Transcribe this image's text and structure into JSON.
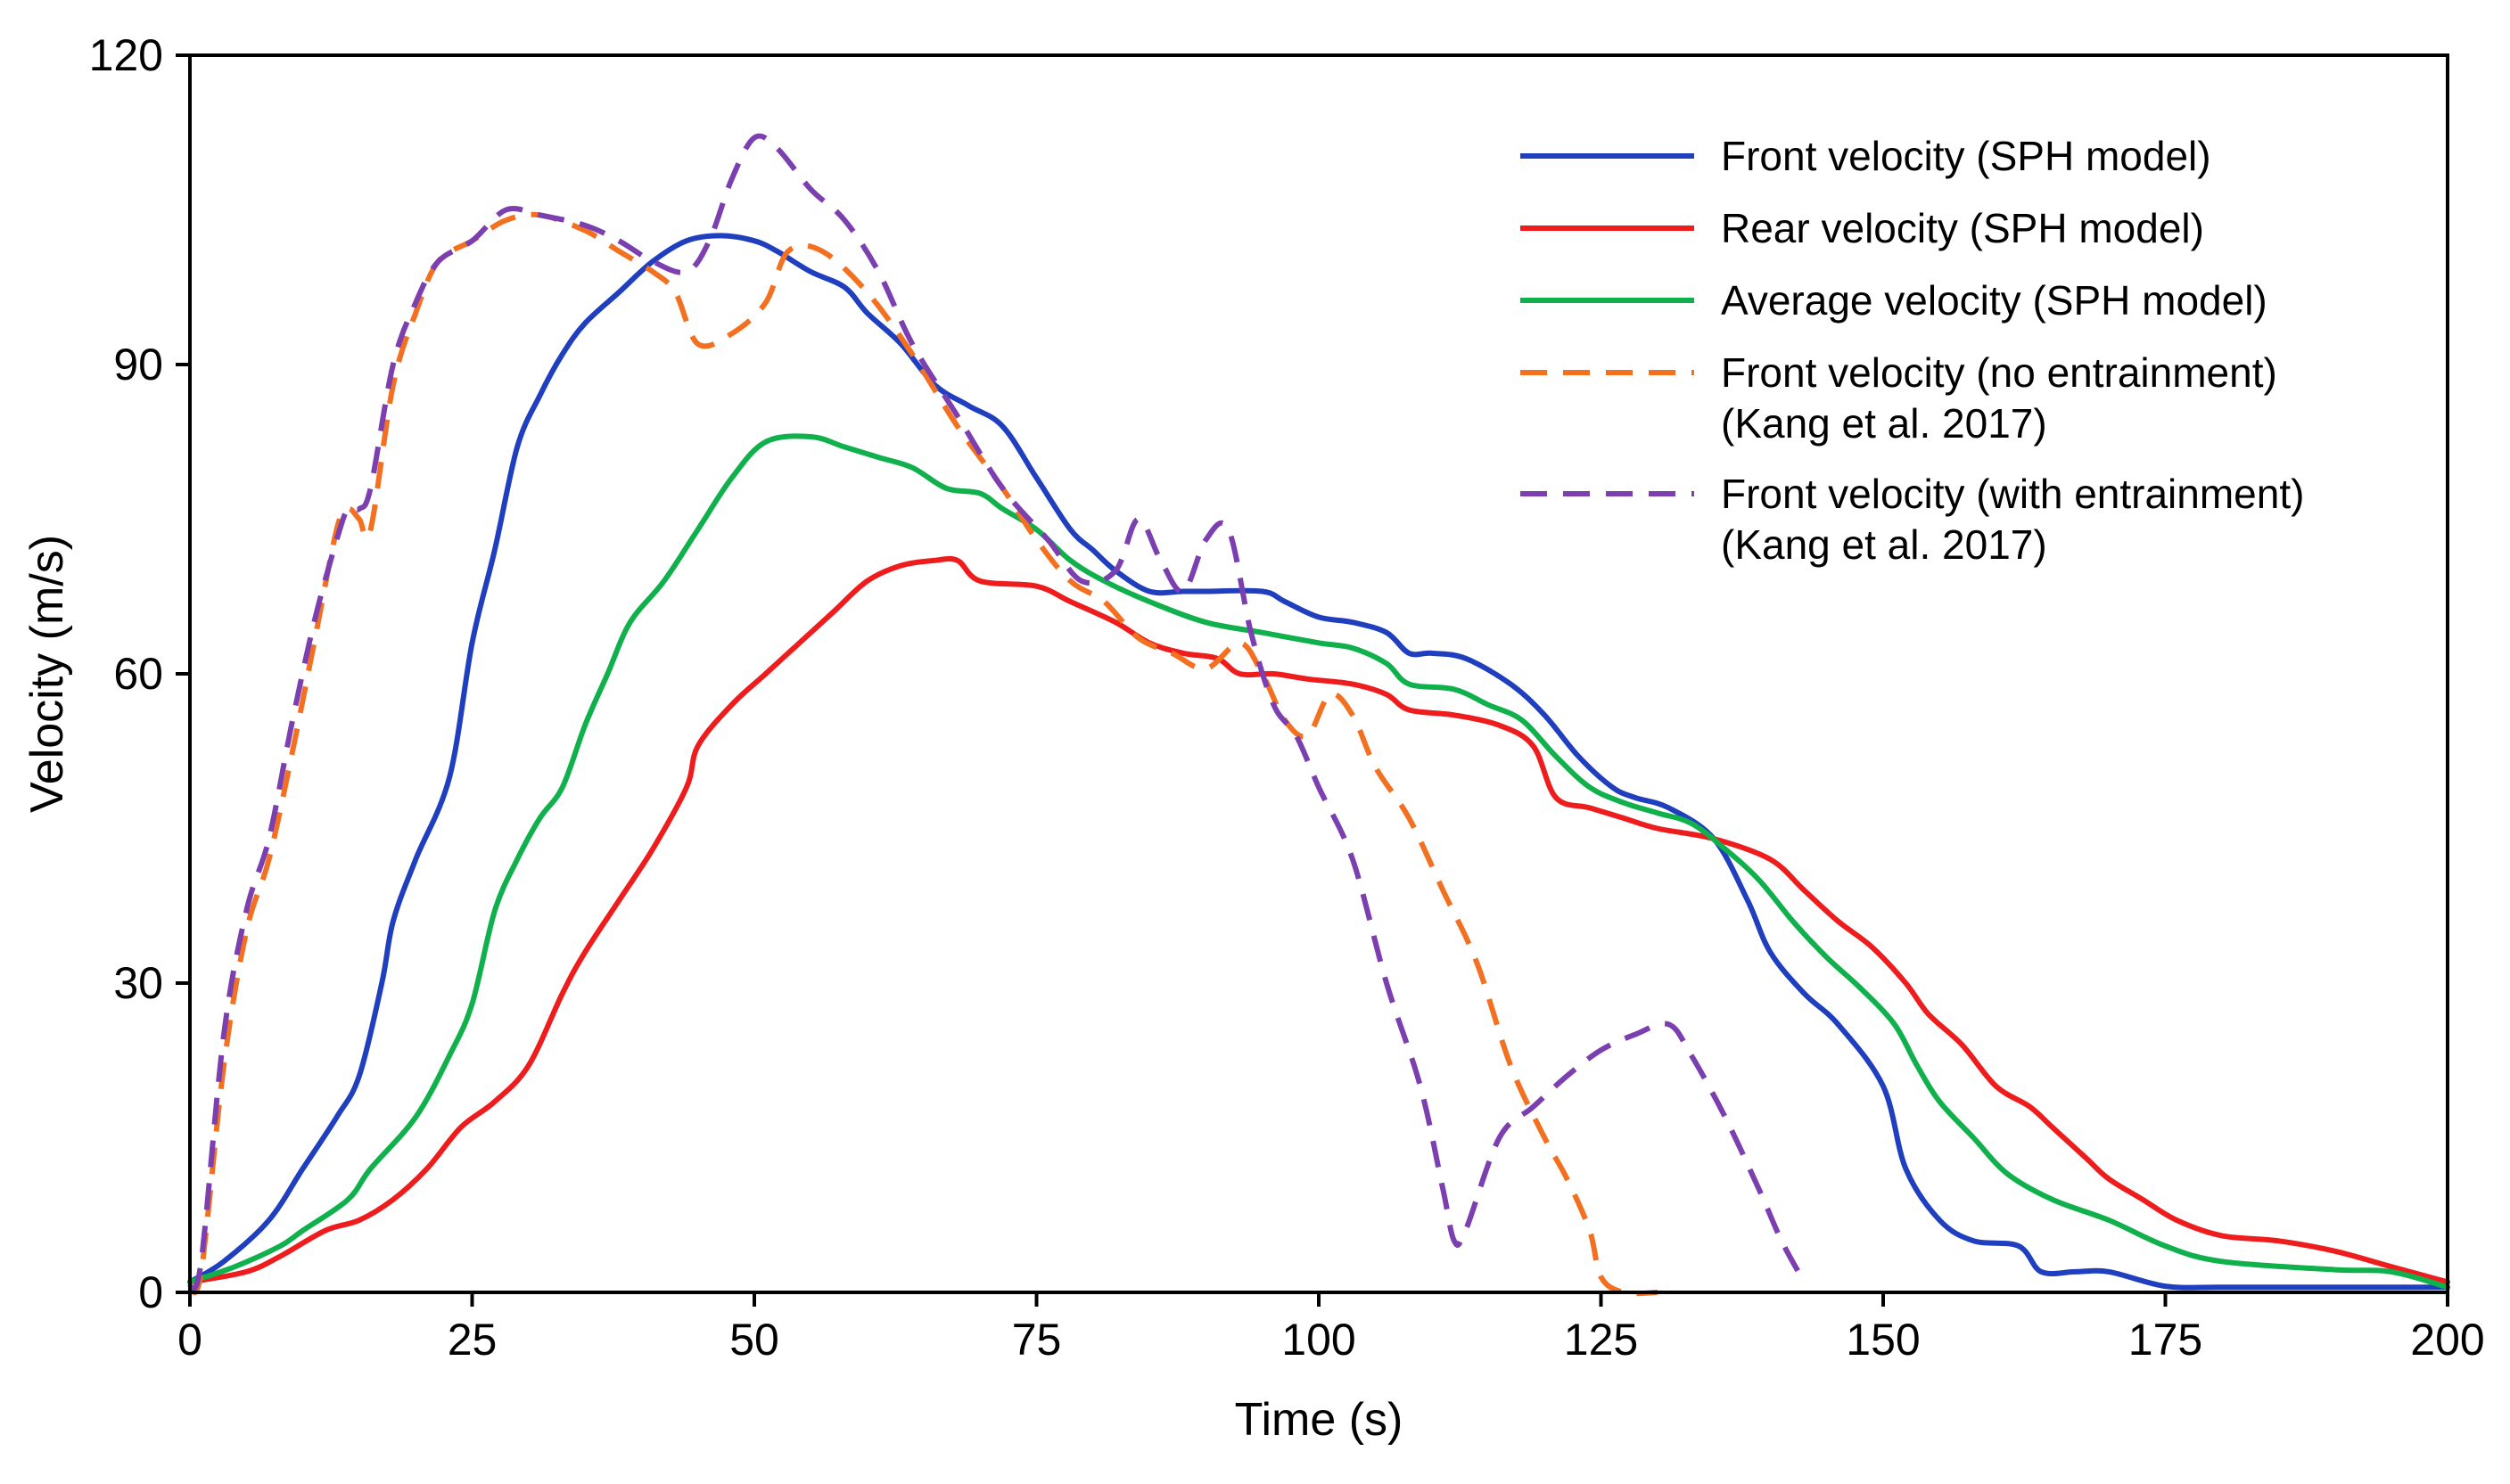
{
  "chart_data": {
    "type": "line",
    "title": "",
    "xlabel": "Time (s)",
    "ylabel": "Velocity (m/s)",
    "xlim": [
      0,
      200
    ],
    "ylim": [
      0,
      120
    ],
    "xticks": [
      0,
      25,
      50,
      75,
      100,
      125,
      150,
      175,
      200
    ],
    "yticks": [
      0,
      30,
      60,
      90,
      120
    ],
    "grid": false,
    "legend_position": "top-right",
    "series": [
      {
        "name": "Front velocity (SPH model)",
        "label_lines": [
          "Front velocity (SPH model)"
        ],
        "color": "#1f3fbf",
        "dash": "solid",
        "points": [
          [
            0,
            1
          ],
          [
            3,
            3
          ],
          [
            7,
            7
          ],
          [
            10,
            12
          ],
          [
            13,
            17
          ],
          [
            15,
            21
          ],
          [
            17,
            30
          ],
          [
            18,
            36
          ],
          [
            20,
            42
          ],
          [
            23,
            50
          ],
          [
            25,
            63
          ],
          [
            27,
            72
          ],
          [
            29,
            82
          ],
          [
            31,
            87
          ],
          [
            33,
            91
          ],
          [
            35,
            94
          ],
          [
            38,
            97
          ],
          [
            41,
            100
          ],
          [
            44,
            102
          ],
          [
            47,
            102.5
          ],
          [
            50,
            102
          ],
          [
            52,
            101
          ],
          [
            55,
            99
          ],
          [
            58,
            97.5
          ],
          [
            60,
            95
          ],
          [
            63,
            92
          ],
          [
            66,
            88
          ],
          [
            69,
            86
          ],
          [
            72,
            84
          ],
          [
            75,
            79
          ],
          [
            78,
            74
          ],
          [
            80,
            72
          ],
          [
            82,
            70
          ],
          [
            85,
            68
          ],
          [
            88,
            68
          ],
          [
            90,
            68
          ],
          [
            95,
            68
          ],
          [
            97,
            67
          ],
          [
            100,
            65.5
          ],
          [
            103,
            65
          ],
          [
            106,
            64
          ],
          [
            108,
            62
          ],
          [
            110,
            62
          ],
          [
            113,
            61.5
          ],
          [
            117,
            59
          ],
          [
            120,
            56
          ],
          [
            123,
            52
          ],
          [
            126,
            49
          ],
          [
            128,
            48
          ],
          [
            131,
            47
          ],
          [
            135,
            44
          ],
          [
            138,
            38
          ],
          [
            140,
            33
          ],
          [
            143,
            29
          ],
          [
            146,
            26
          ],
          [
            150,
            20
          ],
          [
            152,
            12
          ],
          [
            155,
            7
          ],
          [
            158,
            5
          ],
          [
            162,
            4.5
          ],
          [
            164,
            2
          ],
          [
            167,
            2
          ],
          [
            170,
            2
          ],
          [
            175,
            0.6
          ],
          [
            180,
            0.5
          ],
          [
            190,
            0.5
          ],
          [
            200,
            0.5
          ]
        ]
      },
      {
        "name": "Rear velocity (SPH model)",
        "label_lines": [
          "Rear velocity (SPH model)"
        ],
        "color": "#ee1c1c",
        "dash": "solid",
        "points": [
          [
            0,
            1
          ],
          [
            5,
            2
          ],
          [
            8,
            3.5
          ],
          [
            12,
            6
          ],
          [
            15,
            7
          ],
          [
            18,
            9
          ],
          [
            21,
            12
          ],
          [
            24,
            16
          ],
          [
            27,
            18.5
          ],
          [
            30,
            22
          ],
          [
            33,
            29
          ],
          [
            35,
            33
          ],
          [
            38,
            38
          ],
          [
            41,
            43
          ],
          [
            44,
            49
          ],
          [
            45,
            53
          ],
          [
            48,
            57
          ],
          [
            51,
            60
          ],
          [
            54,
            63
          ],
          [
            57,
            66
          ],
          [
            60,
            69
          ],
          [
            63,
            70.5
          ],
          [
            66,
            71
          ],
          [
            68,
            71
          ],
          [
            70,
            69
          ],
          [
            75,
            68.5
          ],
          [
            78,
            67
          ],
          [
            82,
            65
          ],
          [
            85,
            63
          ],
          [
            88,
            62
          ],
          [
            91,
            61.5
          ],
          [
            93,
            60
          ],
          [
            96,
            60
          ],
          [
            99,
            59.5
          ],
          [
            103,
            59
          ],
          [
            106,
            58
          ],
          [
            108,
            56.5
          ],
          [
            112,
            56
          ],
          [
            116,
            55
          ],
          [
            119,
            53
          ],
          [
            121,
            48
          ],
          [
            124,
            47
          ],
          [
            127,
            46
          ],
          [
            130,
            45
          ],
          [
            135,
            44
          ],
          [
            140,
            42
          ],
          [
            143,
            39
          ],
          [
            146,
            36
          ],
          [
            149,
            33.5
          ],
          [
            152,
            30
          ],
          [
            154,
            27
          ],
          [
            157,
            24
          ],
          [
            160,
            20
          ],
          [
            163,
            18
          ],
          [
            165,
            16
          ],
          [
            168,
            13
          ],
          [
            170,
            11
          ],
          [
            173,
            9
          ],
          [
            176,
            7
          ],
          [
            180,
            5.5
          ],
          [
            185,
            5
          ],
          [
            190,
            4
          ],
          [
            195,
            2.5
          ],
          [
            200,
            1
          ]
        ]
      },
      {
        "name": "Average velocity (SPH model)",
        "label_lines": [
          "Average velocity (SPH model)"
        ],
        "color": "#10b04c",
        "dash": "solid",
        "points": [
          [
            0,
            1
          ],
          [
            4,
            2.5
          ],
          [
            8,
            4.5
          ],
          [
            10,
            6
          ],
          [
            14,
            9
          ],
          [
            16,
            12
          ],
          [
            20,
            17
          ],
          [
            23,
            23
          ],
          [
            25,
            28
          ],
          [
            27,
            37
          ],
          [
            29,
            42
          ],
          [
            31,
            46
          ],
          [
            33,
            49
          ],
          [
            35,
            55
          ],
          [
            37,
            60
          ],
          [
            39,
            65
          ],
          [
            42,
            69
          ],
          [
            45,
            74
          ],
          [
            48,
            79
          ],
          [
            51,
            82.5
          ],
          [
            55,
            83
          ],
          [
            58,
            82
          ],
          [
            61,
            81
          ],
          [
            64,
            80
          ],
          [
            67,
            78
          ],
          [
            70,
            77.5
          ],
          [
            72,
            76
          ],
          [
            75,
            74
          ],
          [
            78,
            71
          ],
          [
            81,
            69
          ],
          [
            85,
            67
          ],
          [
            90,
            65
          ],
          [
            95,
            64
          ],
          [
            100,
            63
          ],
          [
            103,
            62.5
          ],
          [
            106,
            61
          ],
          [
            108,
            59
          ],
          [
            112,
            58.5
          ],
          [
            115,
            57
          ],
          [
            118,
            55.5
          ],
          [
            121,
            52
          ],
          [
            124,
            49
          ],
          [
            127,
            47.5
          ],
          [
            130,
            46.5
          ],
          [
            133,
            45.5
          ],
          [
            136,
            43
          ],
          [
            139,
            40
          ],
          [
            142,
            36
          ],
          [
            145,
            32.5
          ],
          [
            148,
            29.5
          ],
          [
            151,
            26
          ],
          [
            153,
            22
          ],
          [
            155,
            18.5
          ],
          [
            158,
            15
          ],
          [
            161,
            11.5
          ],
          [
            165,
            9
          ],
          [
            170,
            7
          ],
          [
            175,
            4.5
          ],
          [
            180,
            3
          ],
          [
            190,
            2.2
          ],
          [
            195,
            2
          ],
          [
            200,
            0.5
          ]
        ]
      },
      {
        "name": "Front velocity (no entrainment) (Kang et al. 2017)",
        "label_lines": [
          "Front velocity (no entrainment)",
          "(Kang et al. 2017)"
        ],
        "color": "#f37021",
        "dash": "dashed",
        "points": [
          [
            0,
            0.5
          ],
          [
            1,
            2
          ],
          [
            3,
            22
          ],
          [
            5,
            35
          ],
          [
            7,
            42
          ],
          [
            9,
            52
          ],
          [
            11,
            63
          ],
          [
            13,
            74
          ],
          [
            14,
            76
          ],
          [
            15,
            75
          ],
          [
            16,
            74
          ],
          [
            18,
            88
          ],
          [
            20,
            95
          ],
          [
            22,
            100
          ],
          [
            25,
            102
          ],
          [
            28,
            104
          ],
          [
            31,
            104.5
          ],
          [
            35,
            103
          ],
          [
            38,
            101
          ],
          [
            41,
            99
          ],
          [
            43,
            97
          ],
          [
            45,
            92
          ],
          [
            48,
            93
          ],
          [
            51,
            96
          ],
          [
            53,
            101
          ],
          [
            56,
            101
          ],
          [
            60,
            97
          ],
          [
            64,
            91
          ],
          [
            68,
            84
          ],
          [
            72,
            78
          ],
          [
            75,
            73
          ],
          [
            78,
            69
          ],
          [
            81,
            67
          ],
          [
            84,
            63.5
          ],
          [
            87,
            62
          ],
          [
            90,
            60.5
          ],
          [
            93,
            63
          ],
          [
            95,
            60
          ],
          [
            97,
            55.5
          ],
          [
            99,
            54
          ],
          [
            101,
            58
          ],
          [
            103,
            56
          ],
          [
            105,
            51
          ],
          [
            108,
            46
          ],
          [
            111,
            39
          ],
          [
            114,
            32
          ],
          [
            117,
            22
          ],
          [
            120,
            15
          ],
          [
            122,
            11
          ],
          [
            124,
            6
          ],
          [
            125,
            1.5
          ],
          [
            127,
            0
          ],
          [
            130,
            0
          ]
        ]
      },
      {
        "name": "Front velocity (with entrainment) (Kang et al. 2017)",
        "label_lines": [
          "Front velocity (with entrainment)",
          "(Kang et al. 2017)"
        ],
        "color": "#7b3fb0",
        "dash": "dashed",
        "points": [
          [
            0,
            0.5
          ],
          [
            1,
            3
          ],
          [
            3,
            25
          ],
          [
            5,
            37
          ],
          [
            7,
            44
          ],
          [
            9,
            55
          ],
          [
            11,
            65
          ],
          [
            13,
            73
          ],
          [
            14,
            76
          ],
          [
            15,
            76
          ],
          [
            16,
            78
          ],
          [
            18,
            90
          ],
          [
            20,
            96
          ],
          [
            22,
            100
          ],
          [
            25,
            102
          ],
          [
            28,
            105
          ],
          [
            31,
            104.5
          ],
          [
            35,
            103.5
          ],
          [
            38,
            102
          ],
          [
            41,
            100
          ],
          [
            44,
            99
          ],
          [
            46,
            102
          ],
          [
            48,
            108
          ],
          [
            50,
            112
          ],
          [
            52,
            111
          ],
          [
            55,
            107
          ],
          [
            58,
            104
          ],
          [
            61,
            99
          ],
          [
            64,
            92
          ],
          [
            68,
            85
          ],
          [
            72,
            78
          ],
          [
            76,
            73
          ],
          [
            79,
            69
          ],
          [
            82,
            70
          ],
          [
            84,
            75
          ],
          [
            86,
            71
          ],
          [
            88,
            68
          ],
          [
            90,
            73
          ],
          [
            92,
            74
          ],
          [
            94,
            64
          ],
          [
            96,
            57
          ],
          [
            98,
            54
          ],
          [
            100,
            49
          ],
          [
            103,
            42
          ],
          [
            106,
            30
          ],
          [
            109,
            20
          ],
          [
            111,
            10
          ],
          [
            112,
            5
          ],
          [
            113,
            6
          ],
          [
            116,
            15
          ],
          [
            119,
            18
          ],
          [
            122,
            21
          ],
          [
            125,
            23.5
          ],
          [
            128,
            25
          ],
          [
            131,
            26
          ],
          [
            133,
            23
          ],
          [
            136,
            17
          ],
          [
            139,
            10
          ],
          [
            141,
            5
          ],
          [
            143,
            1
          ]
        ]
      }
    ]
  }
}
